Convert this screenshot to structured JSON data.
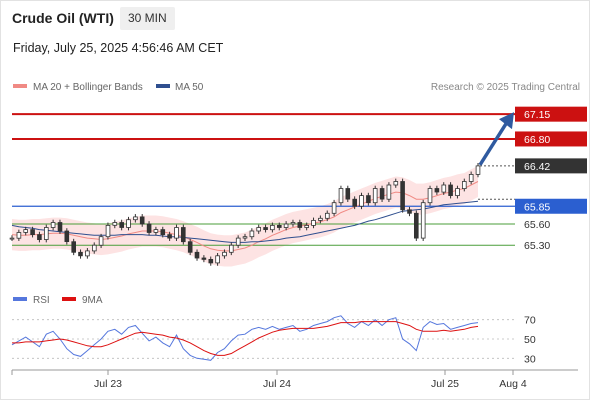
{
  "header": {
    "title": "Crude Oil (WTI)",
    "timeframe": "30 MIN",
    "datetime": "Friday, July 25, 2025 4:56:46 AM CET"
  },
  "legend_main": [
    {
      "label": "MA 20 + Bollinger Bands",
      "color": "#f08a84"
    },
    {
      "label": "MA 50",
      "color": "#2f4f8f"
    }
  ],
  "legend_rsi": [
    {
      "label": "RSI",
      "color": "#5577dd"
    },
    {
      "label": "9MA",
      "color": "#dd1111"
    }
  ],
  "copyright": "Research © 2025 Trading Central",
  "colors": {
    "resistance": "#cc1111",
    "support": "#4a9e3a",
    "pivot": "#2b5fd0",
    "last_price": "#333333",
    "arrow": "#2f5aa0",
    "candle": "#333333",
    "band_fill": "#fde3e3"
  },
  "chart_data": {
    "type": "line",
    "x_ticks": [
      "Jul 23",
      "Jul 24",
      "Jul 25",
      "Aug 4"
    ],
    "price_ylim": [
      64.95,
      67.35
    ],
    "levels": [
      {
        "value": 67.15,
        "label": "67.15",
        "kind": "resistance",
        "boxed": true
      },
      {
        "value": 66.8,
        "label": "66.80",
        "kind": "resistance",
        "boxed": true
      },
      {
        "value": 66.42,
        "label": "66.42",
        "kind": "last",
        "boxed": true
      },
      {
        "value": 65.85,
        "label": "65.85",
        "kind": "pivot",
        "boxed": true
      },
      {
        "value": 65.6,
        "label": "65.60",
        "kind": "support",
        "boxed": false
      },
      {
        "value": 65.3,
        "label": "65.30",
        "kind": "support",
        "boxed": false
      }
    ],
    "price_series": [
      65.4,
      65.48,
      65.52,
      65.45,
      65.38,
      65.55,
      65.62,
      65.5,
      65.35,
      65.2,
      65.15,
      65.22,
      65.3,
      65.42,
      65.58,
      65.62,
      65.55,
      65.66,
      65.7,
      65.6,
      65.48,
      65.52,
      65.45,
      65.4,
      65.55,
      65.35,
      65.2,
      65.12,
      65.1,
      65.05,
      65.15,
      65.2,
      65.3,
      65.4,
      65.42,
      65.5,
      65.55,
      65.52,
      65.58,
      65.55,
      65.6,
      65.62,
      65.55,
      65.58,
      65.65,
      65.68,
      65.75,
      65.9,
      66.1,
      65.95,
      65.85,
      66.0,
      65.9,
      66.1,
      65.95,
      66.15,
      66.2,
      65.8,
      65.75,
      65.4,
      65.9,
      66.1,
      66.05,
      66.15,
      66.0,
      66.1,
      66.2,
      66.3,
      66.42
    ],
    "ma20": [
      65.45,
      65.44,
      65.44,
      65.45,
      65.45,
      65.46,
      65.47,
      65.47,
      65.46,
      65.44,
      65.42,
      65.4,
      65.39,
      65.38,
      65.39,
      65.41,
      65.43,
      65.46,
      65.48,
      65.5,
      65.5,
      65.5,
      65.49,
      65.47,
      65.45,
      65.42,
      65.38,
      65.34,
      65.29,
      65.25,
      65.23,
      65.22,
      65.22,
      65.24,
      65.26,
      65.3,
      65.35,
      65.39,
      65.44,
      65.48,
      65.52,
      65.55,
      65.57,
      65.59,
      65.61,
      65.63,
      65.66,
      65.7,
      65.76,
      65.8,
      65.84,
      65.88,
      65.92,
      65.96,
      65.99,
      66.02,
      66.05,
      66.04,
      66.0,
      65.95,
      65.95,
      65.97,
      66.0,
      66.03,
      66.05,
      66.08,
      66.1,
      66.15,
      66.2
    ],
    "ma50": [
      65.58,
      65.56,
      65.55,
      65.54,
      65.52,
      65.51,
      65.5,
      65.49,
      65.48,
      65.47,
      65.46,
      65.45,
      65.44,
      65.44,
      65.44,
      65.44,
      65.45,
      65.45,
      65.45,
      65.45,
      65.44,
      65.44,
      65.43,
      65.42,
      65.42,
      65.41,
      65.4,
      65.39,
      65.38,
      65.37,
      65.36,
      65.35,
      65.34,
      65.34,
      65.34,
      65.35,
      65.35,
      65.36,
      65.37,
      65.38,
      65.4,
      65.41,
      65.42,
      65.44,
      65.46,
      65.48,
      65.5,
      65.52,
      65.54,
      65.56,
      65.58,
      65.61,
      65.64,
      65.66,
      65.69,
      65.72,
      65.75,
      65.78,
      65.79,
      65.8,
      65.81,
      65.83,
      65.85,
      65.87,
      65.88,
      65.89,
      65.9,
      65.91,
      65.92
    ],
    "rsi_ticks": [
      70,
      50,
      30
    ],
    "rsi_ylim": [
      20,
      80
    ],
    "rsi": [
      44,
      48,
      52,
      47,
      42,
      55,
      58,
      50,
      40,
      34,
      32,
      38,
      44,
      50,
      58,
      60,
      55,
      62,
      64,
      56,
      48,
      52,
      46,
      42,
      54,
      40,
      33,
      30,
      29,
      28,
      36,
      40,
      48,
      54,
      55,
      60,
      62,
      60,
      63,
      60,
      62,
      64,
      58,
      60,
      64,
      66,
      68,
      72,
      74,
      66,
      62,
      68,
      64,
      70,
      64,
      70,
      72,
      50,
      45,
      38,
      62,
      68,
      65,
      66,
      60,
      62,
      64,
      66,
      67
    ],
    "rsi_ma": [
      46,
      46,
      47,
      47,
      47,
      48,
      49,
      50,
      49,
      47,
      45,
      43,
      42,
      42,
      44,
      47,
      50,
      53,
      56,
      57,
      56,
      55,
      54,
      52,
      51,
      49,
      46,
      42,
      38,
      35,
      33,
      33,
      35,
      39,
      43,
      47,
      51,
      54,
      57,
      59,
      60,
      61,
      61,
      61,
      61,
      62,
      63,
      65,
      67,
      67,
      67,
      68,
      68,
      68,
      68,
      68,
      68,
      66,
      64,
      60,
      58,
      58,
      58,
      59,
      58,
      59,
      60,
      62,
      63
    ],
    "forecast_arrow": {
      "from": 66.42,
      "to": 67.15
    }
  }
}
